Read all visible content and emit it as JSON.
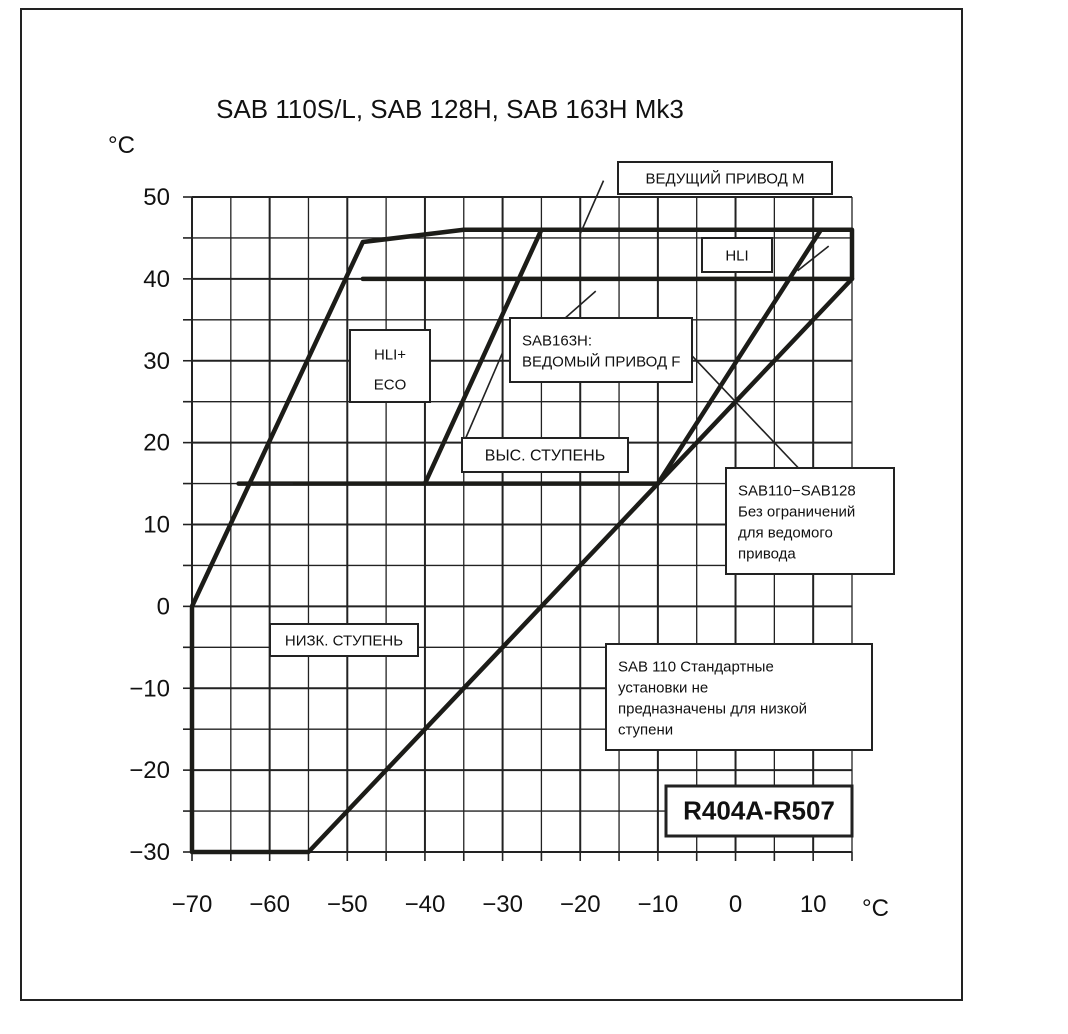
{
  "chart_data": {
    "type": "line",
    "title": "SAB 110S/L, SAB 128H, SAB 163H Mk3",
    "xlabel": "°C",
    "ylabel": "°C",
    "xlim": [
      -70,
      15
    ],
    "ylim": [
      -30,
      50
    ],
    "x_ticks": [
      -70,
      -60,
      -50,
      -40,
      -30,
      -20,
      -10,
      0,
      10
    ],
    "y_ticks": [
      50,
      40,
      30,
      20,
      10,
      0,
      -10,
      -20,
      -30
    ],
    "x_tick_labels": [
      "−70",
      "−60",
      "−50",
      "−40",
      "−30",
      "−20",
      "−10",
      "0",
      "10"
    ],
    "y_tick_labels": [
      "50",
      "40",
      "30",
      "20",
      "10",
      "0",
      "−10",
      "−20",
      "−30"
    ],
    "grid": true,
    "series": [
      {
        "points": [
          [
            -70,
            -30
          ],
          [
            -70,
            0
          ],
          [
            -48,
            44.5
          ],
          [
            -35,
            46
          ],
          [
            15,
            46
          ],
          [
            15,
            40
          ],
          [
            -10,
            15
          ],
          [
            -55,
            -30
          ],
          [
            -70,
            -30
          ]
        ]
      },
      {
        "points": [
          [
            -48,
            40
          ],
          [
            15,
            40
          ]
        ]
      },
      {
        "points": [
          [
            -64,
            15
          ],
          [
            -10,
            15
          ]
        ]
      },
      {
        "points": [
          [
            -40,
            15
          ],
          [
            -25,
            46
          ]
        ]
      },
      {
        "points": [
          [
            -10,
            15
          ],
          [
            11,
            46
          ]
        ]
      }
    ],
    "annotations": [
      {
        "id": "driving",
        "lines": [
          "ВЕДУЩИЙ ПРИВОД М"
        ]
      },
      {
        "id": "hli",
        "lines": [
          "HLI"
        ]
      },
      {
        "id": "hli-eco",
        "lines": [
          "HLI+",
          "ECO"
        ]
      },
      {
        "id": "sab163h",
        "lines": [
          "SAB163H:",
          "ВЕДОМЫЙ ПРИВОД F"
        ]
      },
      {
        "id": "high-stage",
        "lines": [
          "ВЫС. СТУПЕНЬ"
        ]
      },
      {
        "id": "sab110-128",
        "lines": [
          "SAB110−SAB128",
          "Без ограничений",
          "для ведомого",
          "привода"
        ]
      },
      {
        "id": "low-stage",
        "lines": [
          "НИЗК. СТУПЕНЬ"
        ]
      },
      {
        "id": "sab110-std",
        "lines": [
          "SAB 110 Стандартные",
          "установки не",
          "предназначены для низкой",
          "ступени"
        ]
      },
      {
        "id": "refrigerant",
        "lines": [
          "R404A-R507"
        ]
      }
    ]
  }
}
